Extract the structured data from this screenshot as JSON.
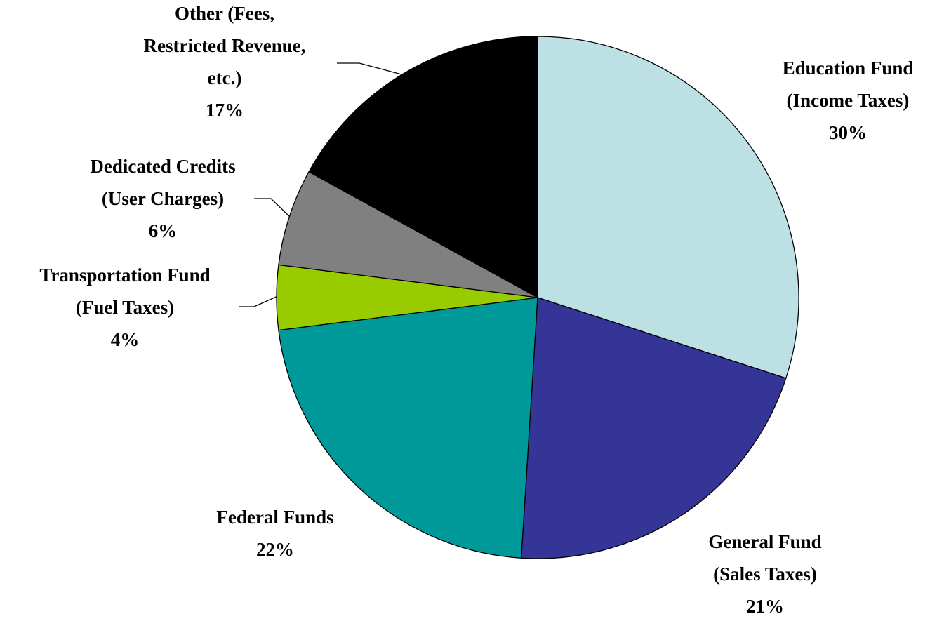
{
  "chart_data": {
    "type": "pie",
    "categories": [
      [
        "Education Fund",
        "(Income Taxes)"
      ],
      [
        "General Fund",
        "(Sales Taxes)"
      ],
      [
        "Federal Funds"
      ],
      [
        "Transportation Fund",
        "(Fuel Taxes)"
      ],
      [
        "Dedicated Credits",
        "(User Charges)"
      ],
      [
        "Other (Fees,",
        "Restricted Revenue,",
        "etc.)"
      ]
    ],
    "values": [
      30,
      21,
      22,
      4,
      6,
      17
    ],
    "value_labels": [
      "30%",
      "21%",
      "22%",
      "4%",
      "6%",
      "17%"
    ],
    "colors": [
      "#bce0e3",
      "#353597",
      "#009999",
      "#99cc00",
      "#808080",
      "#000000"
    ]
  }
}
